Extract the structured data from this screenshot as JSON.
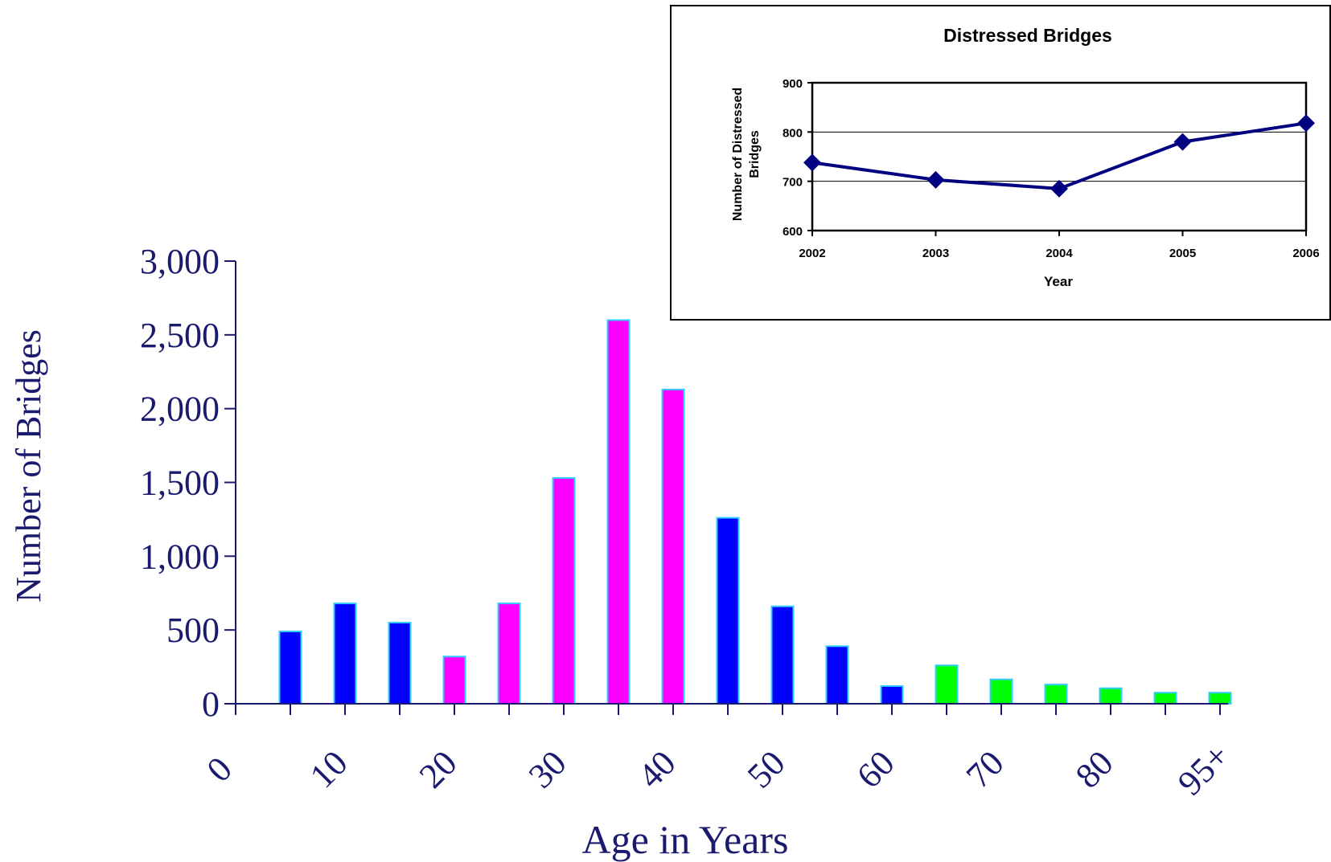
{
  "chart_data": [
    {
      "type": "bar",
      "title": "",
      "xlabel": "Age in Years",
      "ylabel": "Number of Bridges",
      "ylim": [
        0,
        3000
      ],
      "yticks": [
        0,
        500,
        1000,
        1500,
        2000,
        2500,
        3000
      ],
      "ytick_labels": [
        "0",
        "500",
        "1,000",
        "1,500",
        "2,000",
        "2,500",
        "3,000"
      ],
      "xtick_labels": [
        "0",
        "10",
        "20",
        "30",
        "40",
        "50",
        "60",
        "70",
        "80",
        "95+"
      ],
      "values": [
        490,
        680,
        550,
        320,
        680,
        1530,
        2600,
        2130,
        1260,
        660,
        390,
        120,
        260,
        165,
        130,
        105,
        75,
        75
      ],
      "colors": [
        "#0000ff",
        "#0000ff",
        "#0000ff",
        "#ff00ff",
        "#ff00ff",
        "#ff00ff",
        "#ff00ff",
        "#ff00ff",
        "#0000ff",
        "#0000ff",
        "#0000ff",
        "#0000ff",
        "#00ff00",
        "#00ff00",
        "#00ff00",
        "#00ff00",
        "#00ff00",
        "#00ff00"
      ],
      "bar_outline_color": "#33ccff",
      "text_color": "#1a1a6e",
      "grid": false
    },
    {
      "type": "line",
      "title": "Distressed Bridges",
      "xlabel": "Year",
      "ylabel": "Number of Distressed Bridges",
      "x": [
        "2002",
        "2003",
        "2004",
        "2005",
        "2006"
      ],
      "values": [
        738,
        703,
        685,
        780,
        818
      ],
      "ylim": [
        600,
        900
      ],
      "yticks": [
        600,
        700,
        800,
        900
      ],
      "line_color": "#000080",
      "grid": true
    }
  ]
}
